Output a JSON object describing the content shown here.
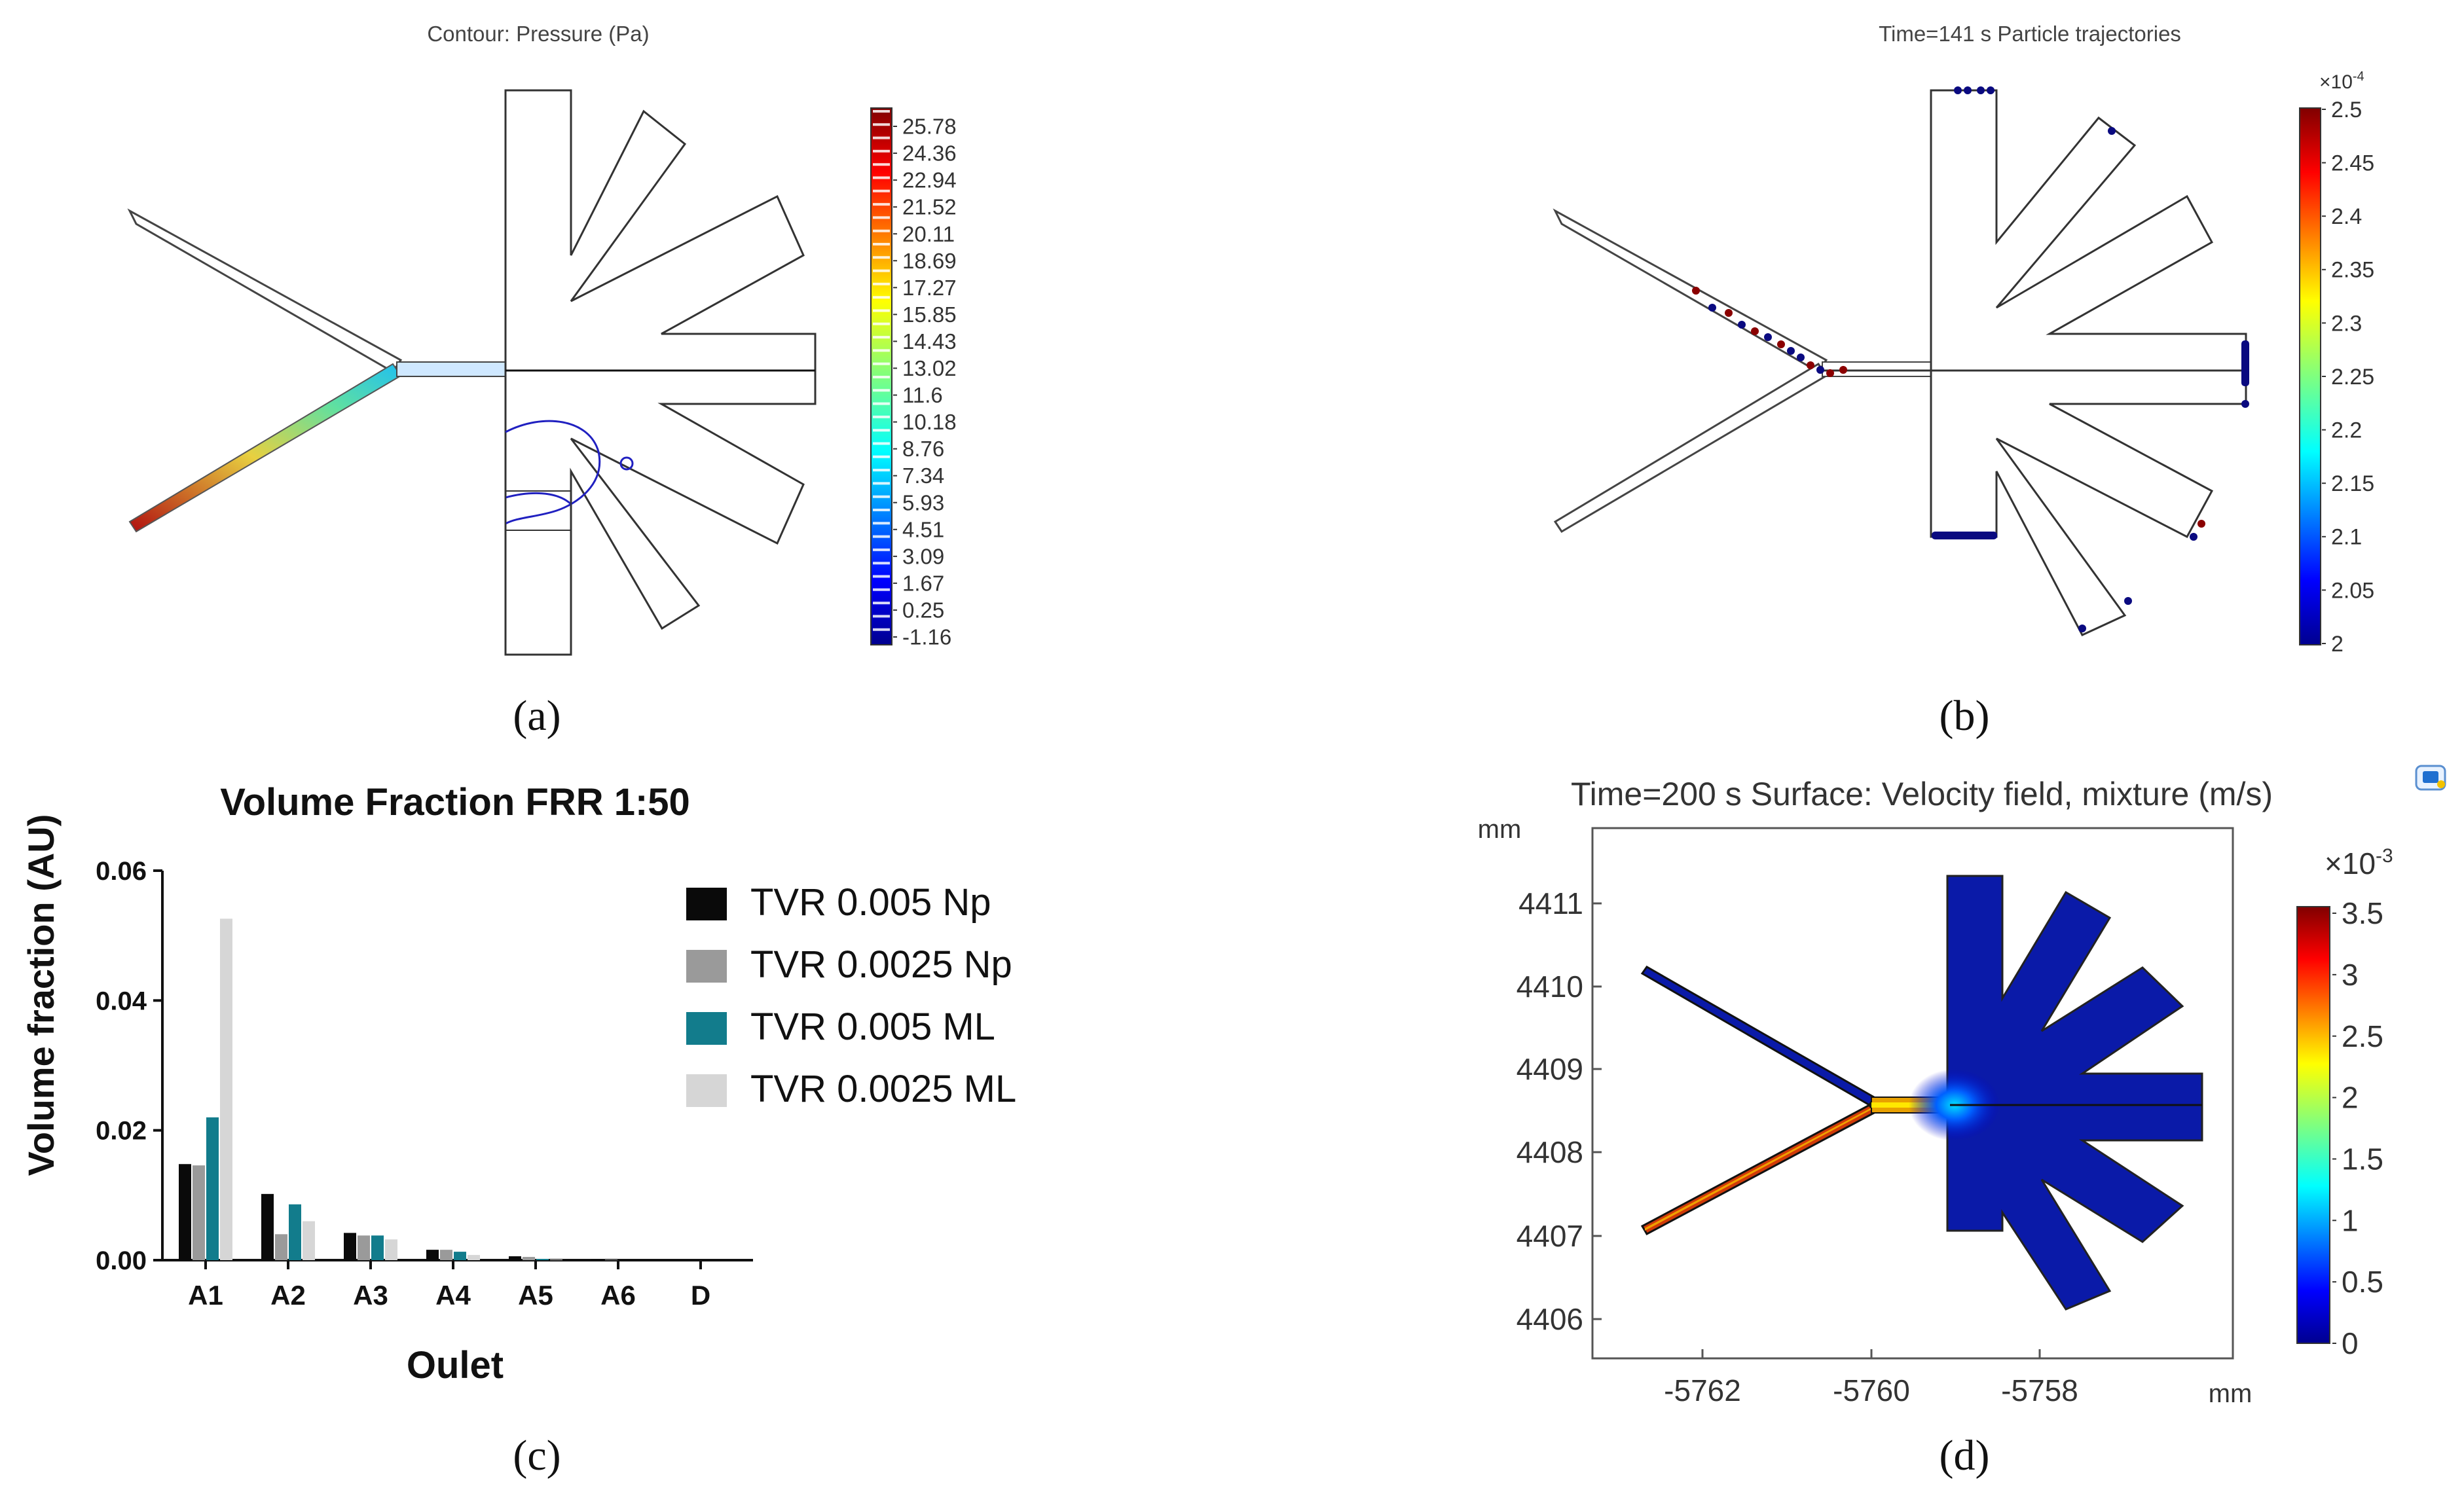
{
  "panels": {
    "a": {
      "caption": "(a)",
      "title": "Contour: Pressure (Pa)",
      "colorbar_ticks": [
        "25.78",
        "24.36",
        "22.94",
        "21.52",
        "20.11",
        "18.69",
        "17.27",
        "15.85",
        "14.43",
        "13.02",
        "11.6",
        "10.18",
        "8.76",
        "7.34",
        "5.93",
        "4.51",
        "3.09",
        "1.67",
        "0.25",
        "-1.16"
      ]
    },
    "b": {
      "caption": "(b)",
      "title": "Time=141 s  Particle trajectories",
      "colorbar_exponent": "×10",
      "colorbar_exponent_power": "-4",
      "colorbar_ticks": [
        "2.5",
        "2.45",
        "2.4",
        "2.35",
        "2.3",
        "2.25",
        "2.2",
        "2.15",
        "2.1",
        "2.05",
        "2"
      ]
    },
    "c": {
      "caption": "(c)"
    },
    "d": {
      "caption": "(d)",
      "title": "Time=200 s   Surface: Velocity field, mixture (m/s)",
      "unit_y": "mm",
      "unit_x": "mm",
      "y_ticks": [
        "4411",
        "4410",
        "4409",
        "4408",
        "4407",
        "4406"
      ],
      "x_ticks": [
        "-5762",
        "-5760",
        "-5758"
      ],
      "colorbar_exponent": "×10",
      "colorbar_exponent_power": "-3",
      "colorbar_ticks": [
        "3.5",
        "3",
        "2.5",
        "2",
        "1.5",
        "1",
        "0.5",
        "0"
      ]
    }
  },
  "chart_data": {
    "type": "bar",
    "title": "Volume Fraction FRR 1:50",
    "xlabel": "Oulet",
    "ylabel": "Volume fraction (AU)",
    "ylim": [
      0,
      0.06
    ],
    "yticks": [
      "0.00",
      "0.02",
      "0.04",
      "0.06"
    ],
    "categories": [
      "A1",
      "A2",
      "A3",
      "A4",
      "A5",
      "A6",
      "D"
    ],
    "legend_position": "right",
    "series": [
      {
        "name": "TVR 0.005 Np",
        "color": "#0a0a0a",
        "values": [
          0.0148,
          0.0102,
          0.0042,
          0.0016,
          0.0006,
          0.0001,
          0.0
        ]
      },
      {
        "name": "TVR 0.0025 Np",
        "color": "#9a9a9a",
        "values": [
          0.0146,
          0.004,
          0.0038,
          0.0016,
          0.0005,
          0.0001,
          0.0
        ]
      },
      {
        "name": "TVR 0.005 ML",
        "color": "#127c8c",
        "values": [
          0.022,
          0.0086,
          0.0038,
          0.0013,
          0.0002,
          0.0,
          0.0
        ]
      },
      {
        "name": "TVR 0.0025 ML",
        "color": "#d6d6d6",
        "values": [
          0.0526,
          0.006,
          0.0032,
          0.0008,
          0.0001,
          0.0,
          0.0
        ]
      }
    ]
  }
}
